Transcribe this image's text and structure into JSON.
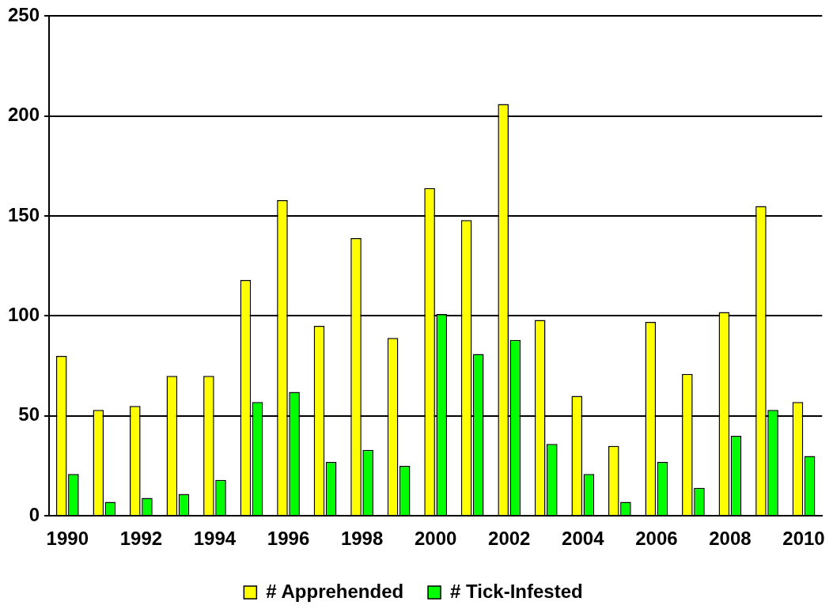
{
  "chart_data": {
    "type": "bar",
    "categories": [
      "1990",
      null,
      "1992",
      null,
      "1994",
      null,
      "1996",
      null,
      "1998",
      null,
      "2000",
      null,
      "2002",
      null,
      "2004",
      null,
      "2006",
      null,
      "2008",
      null,
      "2010"
    ],
    "series": [
      {
        "name": "# Apprehended",
        "color": "#ffff00",
        "values": [
          80,
          53,
          55,
          70,
          70,
          118,
          158,
          95,
          139,
          89,
          164,
          148,
          206,
          98,
          60,
          35,
          97,
          71,
          102,
          155,
          57
        ]
      },
      {
        "name": "# Tick-Infested",
        "color": "#00ff00",
        "values": [
          21,
          7,
          9,
          11,
          18,
          57,
          62,
          27,
          33,
          25,
          101,
          81,
          88,
          36,
          21,
          7,
          27,
          14,
          40,
          53,
          30
        ]
      }
    ],
    "ylim": [
      0,
      250
    ],
    "yticks": [
      0,
      50,
      100,
      150,
      200,
      250
    ],
    "grid": "y",
    "legend": "bottom"
  }
}
